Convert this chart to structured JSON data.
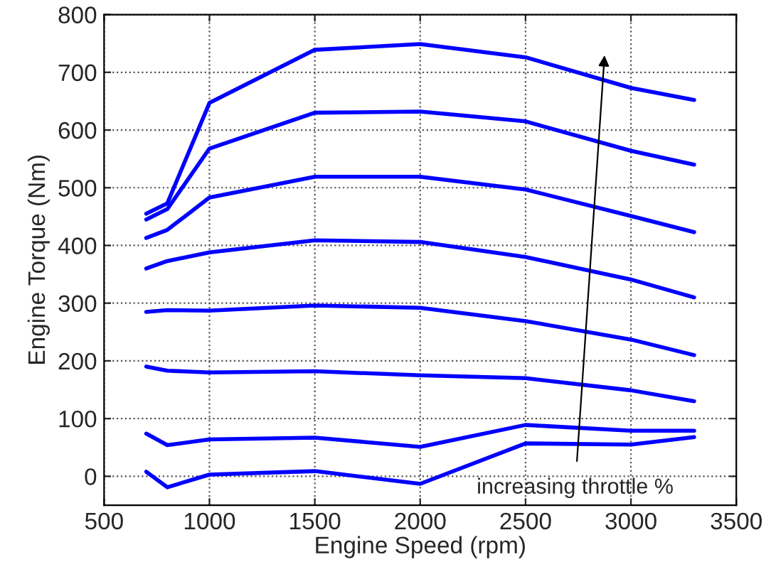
{
  "chart_data": {
    "type": "line",
    "xlabel": "Engine Speed (rpm)",
    "ylabel": "Engine Torque (Nm)",
    "x": [
      700,
      800,
      1000,
      1500,
      2000,
      2500,
      3000,
      3300
    ],
    "series": [
      {
        "color": "#0000ff",
        "values": [
          455,
          473,
          647,
          739,
          749,
          726,
          673,
          652
        ]
      },
      {
        "color": "#0000ff",
        "values": [
          445,
          463,
          568,
          630,
          632,
          615,
          564,
          540
        ]
      },
      {
        "color": "#0000ff",
        "values": [
          413,
          427,
          483,
          519,
          519,
          497,
          451,
          423
        ]
      },
      {
        "color": "#0000ff",
        "values": [
          360,
          373,
          388,
          409,
          406,
          380,
          341,
          310
        ]
      },
      {
        "color": "#0000ff",
        "values": [
          285,
          288,
          287,
          296,
          292,
          269,
          237,
          210
        ]
      },
      {
        "color": "#0000ff",
        "values": [
          190,
          183,
          180,
          182,
          175,
          170,
          149,
          130
        ]
      },
      {
        "color": "#0000ff",
        "values": [
          74,
          54,
          64,
          67,
          51,
          89,
          79,
          79
        ]
      },
      {
        "color": "#0000ff",
        "values": [
          8,
          -19,
          3,
          9,
          -13,
          57,
          55,
          68
        ]
      }
    ],
    "xlim": [
      500,
      3500
    ],
    "xticks": [
      500,
      1000,
      1500,
      2000,
      2500,
      3000,
      3500
    ],
    "ylim": [
      -50,
      800
    ],
    "yticks": [
      0,
      100,
      200,
      300,
      400,
      500,
      600,
      700,
      800
    ],
    "annotations": [
      "increasing throttle %"
    ],
    "grid": true,
    "line_style": "solid",
    "marker": "none",
    "legend": false
  }
}
